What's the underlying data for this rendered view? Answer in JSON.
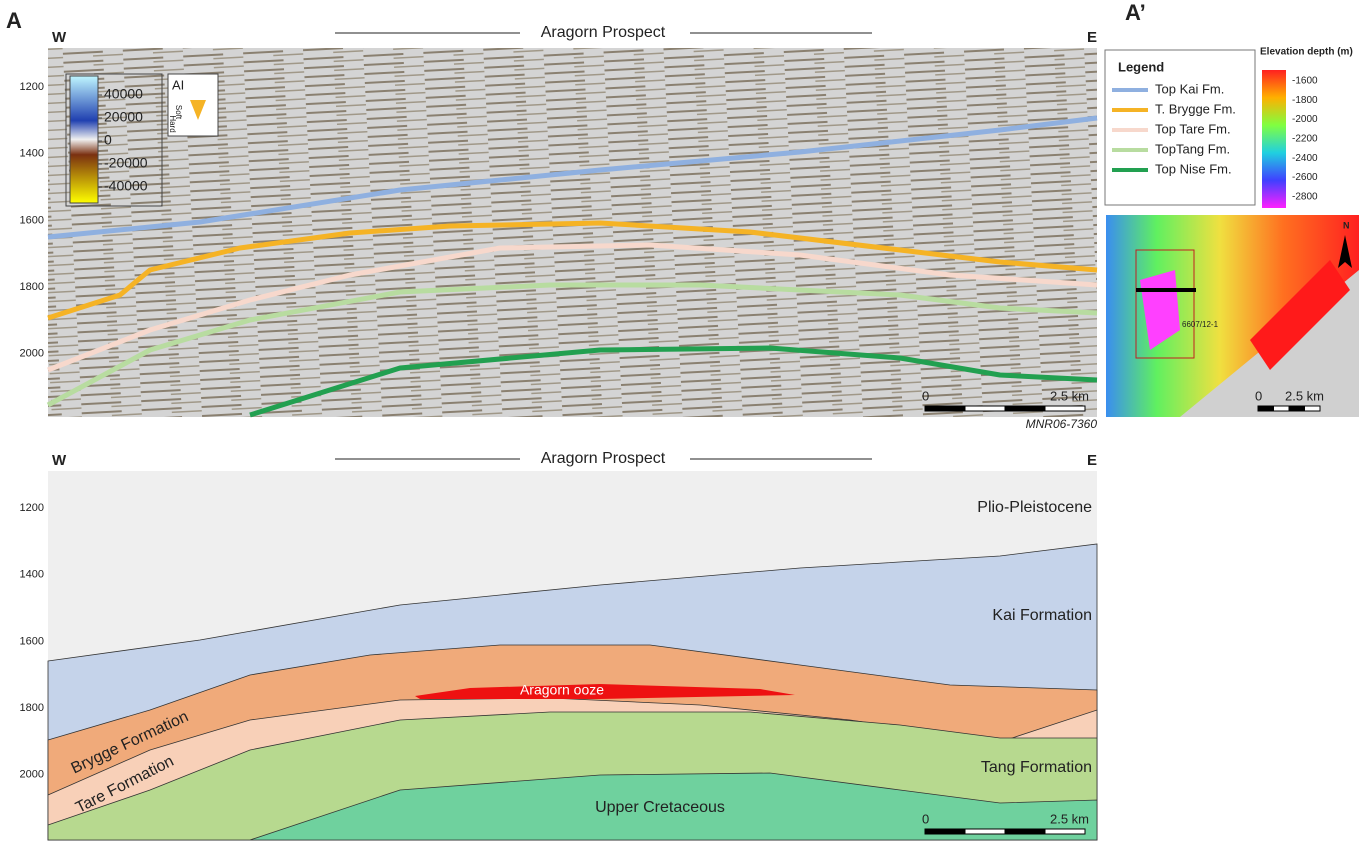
{
  "panel_labels": [
    "A",
    "A’"
  ],
  "seismic": {
    "west": "W",
    "east": "E",
    "prospect": "Aragorn Prospect",
    "depth_ticks": [
      "1200",
      "1400",
      "1600",
      "1800",
      "2000"
    ],
    "colorbar": {
      "title": "AI",
      "soft": "Soft",
      "hard": "Hard",
      "ticks": [
        "40000",
        "20000",
        "0",
        "-20000",
        "-40000"
      ]
    },
    "scale": {
      "start": "0",
      "end": "2.5 km"
    },
    "line_id": "MNR06-7360"
  },
  "legend": {
    "title": "Legend",
    "items": [
      {
        "label": "Top Kai Fm.",
        "color": "#8fb0e0"
      },
      {
        "label": "T. Brygge Fm.",
        "color": "#f5b325"
      },
      {
        "label": "Top Tare Fm.",
        "color": "#f7d8cc"
      },
      {
        "label": "TopTang Fm.",
        "color": "#b8dca0"
      },
      {
        "label": "Top Nise Fm.",
        "color": "#22a050"
      }
    ]
  },
  "map": {
    "colorbar_title": "Elevation depth (m)",
    "ticks": [
      "-1600",
      "-1800",
      "-2000",
      "-2200",
      "-2400",
      "-2600",
      "-2800"
    ],
    "well": "6607/12-1",
    "north": "N",
    "scale": {
      "start": "0",
      "end": "2.5 km"
    }
  },
  "section": {
    "west": "W",
    "east": "E",
    "prospect": "Aragorn Prospect",
    "depth_ticks": [
      "1200",
      "1400",
      "1600",
      "1800",
      "2000"
    ],
    "units": [
      "Plio-Pleistocene",
      "Kai Formation",
      "Brygge Formation",
      "Tare Formation",
      "Aragorn ooze",
      "Tang Formation",
      "Upper Cretaceous"
    ],
    "scale": {
      "start": "0",
      "end": "2.5 km"
    }
  }
}
